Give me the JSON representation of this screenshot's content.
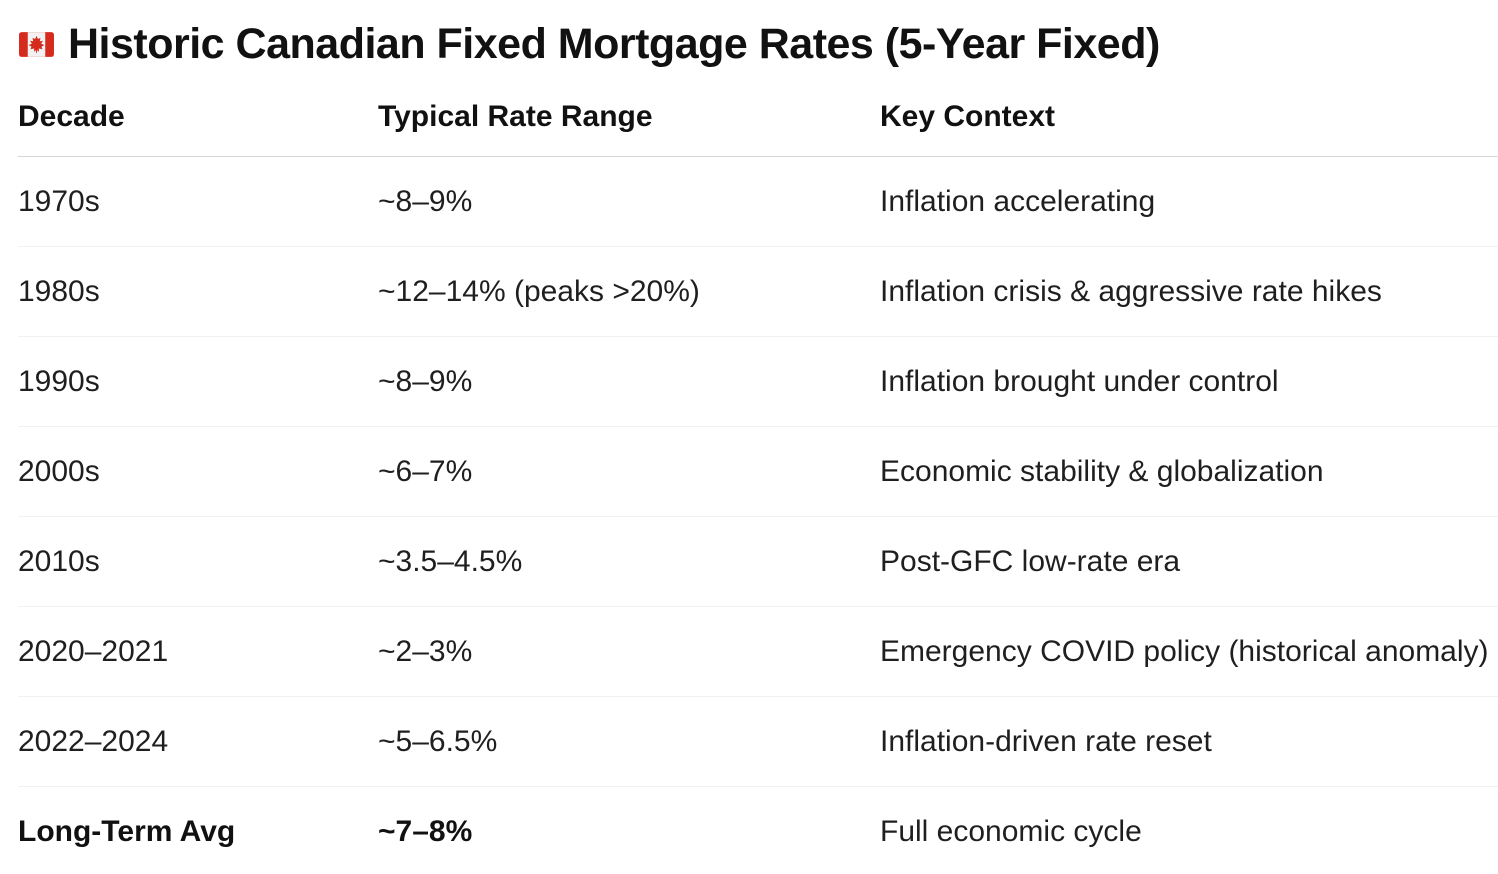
{
  "page": {
    "title": "Historic Canadian Fixed Mortgage Rates (5-Year Fixed)"
  },
  "icons": {
    "title_flag": "canada-flag-icon"
  },
  "table": {
    "columns": [
      "Decade",
      "Typical Rate Range",
      "Key Context"
    ],
    "rows": [
      {
        "decade": "1970s",
        "rate": "~8–9%",
        "context": "Inflation accelerating",
        "bold": false
      },
      {
        "decade": "1980s",
        "rate": "~12–14% (peaks >20%)",
        "context": "Inflation crisis & aggressive rate hikes",
        "bold": false
      },
      {
        "decade": "1990s",
        "rate": "~8–9%",
        "context": "Inflation brought under control",
        "bold": false
      },
      {
        "decade": "2000s",
        "rate": "~6–7%",
        "context": "Economic stability & globalization",
        "bold": false
      },
      {
        "decade": "2010s",
        "rate": "~3.5–4.5%",
        "context": "Post-GFC low-rate era",
        "bold": false
      },
      {
        "decade": "2020–2021",
        "rate": "~2–3%",
        "context": "Emergency COVID policy (historical anomaly)",
        "bold": false
      },
      {
        "decade": "2022–2024",
        "rate": "~5–6.5%",
        "context": "Inflation-driven rate reset",
        "bold": false
      },
      {
        "decade": "Long-Term Avg",
        "rate": "~7–8%",
        "context": "Full economic cycle",
        "bold": true
      }
    ]
  },
  "colors": {
    "text": "#1f1f1f",
    "title_text": "#111111",
    "header_divider": "#d7d7d7",
    "row_divider": "#f1f1f1",
    "flag_red": "#d52b1e",
    "flag_white": "#f2f2f2",
    "background": "#ffffff"
  }
}
